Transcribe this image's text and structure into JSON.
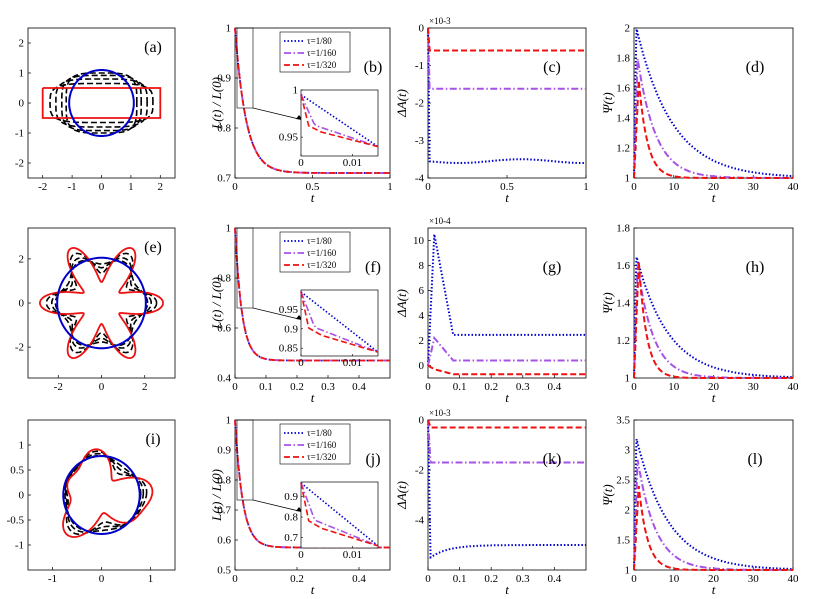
{
  "colors": {
    "blue": "#0000cc",
    "purple": "#a652e6",
    "red": "#ee1111",
    "black": "#000000"
  },
  "legend": [
    {
      "label": "τ=1/80",
      "color": "#0000cc",
      "dash": "1.5,2"
    },
    {
      "label": "τ=1/160",
      "color": "#a652e6",
      "dash": "7,2.5,1.5,2.5"
    },
    {
      "label": "τ=1/320",
      "color": "#ee1111",
      "dash": "6,3"
    }
  ],
  "chart_data": [
    {
      "panel": "(a)",
      "type": "line",
      "xlabel": "",
      "ylabel": "",
      "xlim": [
        -2.5,
        2.5
      ],
      "ylim": [
        -2.5,
        2.5
      ],
      "xticks": [
        -2,
        -1,
        0,
        1,
        2
      ],
      "yticks": [
        -2,
        -1,
        0,
        1,
        2
      ],
      "shape": "rectangle",
      "series": [
        {
          "name": "initial",
          "color": "#ee1111"
        },
        {
          "name": "intermediate",
          "color": "#000000"
        },
        {
          "name": "final circle",
          "color": "#0000cc"
        }
      ]
    },
    {
      "panel": "(b)",
      "type": "line",
      "xlabel": "t",
      "ylabel": "L(t) / L(0)",
      "xlim": [
        0,
        1
      ],
      "ylim": [
        0.7,
        1
      ],
      "xticks": [
        "0",
        "0.5",
        "1"
      ],
      "yticks": [
        "0.7",
        "0.8",
        "0.9",
        "1"
      ],
      "final": 0.71,
      "rate": 14,
      "inset": {
        "xlim": [
          0,
          0.015
        ],
        "ylim": [
          0.93,
          1
        ],
        "xticks": [
          "0",
          "0.01"
        ],
        "yticks": [
          "0.95",
          "1"
        ]
      }
    },
    {
      "panel": "(c)",
      "type": "line",
      "xlabel": "t",
      "ylabel": "ΔA(t)",
      "exponent": "×10-3",
      "xlim": [
        0,
        1
      ],
      "ylim": [
        -4,
        0
      ],
      "xticks": [
        "0",
        "0.5",
        "1"
      ],
      "yticks": [
        "-4",
        "-3",
        "-2",
        "-1",
        "0"
      ],
      "series": [
        {
          "name": "τ=1/80",
          "value": -3.55
        },
        {
          "name": "τ=1/160",
          "value": -1.62
        },
        {
          "name": "τ=1/320",
          "value": -0.6
        }
      ]
    },
    {
      "panel": "(d)",
      "type": "line",
      "xlabel": "t",
      "ylabel": "Ψ(t)",
      "xlim": [
        0,
        40
      ],
      "ylim": [
        1,
        2
      ],
      "xticks": [
        "0",
        "10",
        "20",
        "30",
        "40"
      ],
      "yticks": [
        "1",
        "1.2",
        "1.4",
        "1.6",
        "1.8",
        "2"
      ],
      "series": [
        {
          "name": "τ=1/80",
          "peak": 2.0,
          "decay": 9
        },
        {
          "name": "τ=1/160",
          "peak": 1.8,
          "decay": 4.5
        },
        {
          "name": "τ=1/320",
          "peak": 1.65,
          "decay": 2.2
        }
      ]
    },
    {
      "panel": "(e)",
      "type": "line",
      "xlabel": "",
      "ylabel": "",
      "xlim": [
        -3.4,
        3.4
      ],
      "ylim": [
        -3.4,
        3.4
      ],
      "xticks": [
        -2,
        0,
        2
      ],
      "yticks": [
        -2,
        0,
        2
      ],
      "shape": "star",
      "series": [
        {
          "name": "initial",
          "color": "#ee1111"
        },
        {
          "name": "intermediate",
          "color": "#000000"
        },
        {
          "name": "final circle",
          "color": "#0000cc"
        }
      ]
    },
    {
      "panel": "(f)",
      "type": "line",
      "xlabel": "t",
      "ylabel": "L(t) / L(0)",
      "xlim": [
        0,
        0.5
      ],
      "ylim": [
        0.4,
        1
      ],
      "xticks": [
        "0",
        "0.1",
        "0.2",
        "0.3",
        "0.4"
      ],
      "yticks": [
        "0.4",
        "0.6",
        "0.8",
        "1"
      ],
      "final": 0.47,
      "rate": 45,
      "inset": {
        "xlim": [
          0,
          0.015
        ],
        "ylim": [
          0.83,
          1
        ],
        "xticks": [
          "0",
          "0.01"
        ],
        "yticks": [
          "0.85",
          "0.9",
          "0.95"
        ]
      }
    },
    {
      "panel": "(g)",
      "type": "line",
      "xlabel": "t",
      "ylabel": "ΔA(t)",
      "exponent": "×10-4",
      "xlim": [
        0,
        0.5
      ],
      "ylim": [
        -1,
        11
      ],
      "xticks": [
        "0",
        "0.1",
        "0.2",
        "0.3",
        "0.4"
      ],
      "yticks": [
        "0",
        "2",
        "4",
        "6",
        "8",
        "10"
      ],
      "series": [
        {
          "name": "τ=1/80",
          "value": 2.4,
          "peak": 10.5
        },
        {
          "name": "τ=1/160",
          "value": 0.4,
          "peak": 2.2
        },
        {
          "name": "τ=1/320",
          "value": -0.7,
          "peak": 0
        }
      ]
    },
    {
      "panel": "(h)",
      "type": "line",
      "xlabel": "t",
      "ylabel": "Ψ(t)",
      "xlim": [
        0,
        40
      ],
      "ylim": [
        1,
        1.8
      ],
      "xticks": [
        "0",
        "10",
        "20",
        "30",
        "40"
      ],
      "yticks": [
        "1",
        "1.2",
        "1.4",
        "1.6",
        "1.8"
      ],
      "series": [
        {
          "name": "τ=1/80",
          "peak": 1.65,
          "decay": 8
        },
        {
          "name": "τ=1/160",
          "peak": 1.6,
          "decay": 4
        },
        {
          "name": "τ=1/320",
          "peak": 1.62,
          "decay": 2
        }
      ]
    },
    {
      "panel": "(i)",
      "type": "line",
      "xlabel": "",
      "ylabel": "",
      "xlim": [
        -1.5,
        1.5
      ],
      "ylim": [
        -1.5,
        1.5
      ],
      "xticks": [
        -1,
        0,
        1
      ],
      "yticks": [
        -1,
        -0.5,
        0,
        0.5,
        1
      ],
      "shape": "irregular",
      "series": [
        {
          "name": "initial",
          "color": "#ee1111"
        },
        {
          "name": "intermediate",
          "color": "#000000"
        },
        {
          "name": "final circle",
          "color": "#0000cc"
        }
      ]
    },
    {
      "panel": "(j)",
      "type": "line",
      "xlabel": "t",
      "ylabel": "L(t) / L(0)",
      "xlim": [
        0,
        0.5
      ],
      "ylim": [
        0.5,
        1
      ],
      "xticks": [
        "0",
        "0.2",
        "0.4"
      ],
      "yticks": [
        "0.5",
        "0.6",
        "0.7",
        "0.8",
        "0.9",
        "1"
      ],
      "final": 0.575,
      "rate": 40,
      "inset": {
        "xlim": [
          0,
          0.015
        ],
        "ylim": [
          0.65,
          0.97
        ],
        "xticks": [
          "0",
          "0.01"
        ],
        "yticks": [
          "0.7",
          "0.8",
          "0.9"
        ]
      }
    },
    {
      "panel": "(k)",
      "type": "line",
      "xlabel": "t",
      "ylabel": "ΔA(t)",
      "exponent": "×10-3",
      "xlim": [
        0,
        0.5
      ],
      "ylim": [
        -6,
        0
      ],
      "xticks": [
        "0",
        "0.1",
        "0.2",
        "0.3",
        "0.4"
      ],
      "yticks": [
        "-4",
        "-2",
        "0"
      ],
      "series": [
        {
          "name": "τ=1/80",
          "value": -5.0,
          "peak": -5.5
        },
        {
          "name": "τ=1/160",
          "value": -1.7,
          "peak": -1.7
        },
        {
          "name": "τ=1/320",
          "value": -0.3,
          "peak": -0.3
        }
      ]
    },
    {
      "panel": "(l)",
      "type": "line",
      "xlabel": "t",
      "ylabel": "Ψ(t)",
      "xlim": [
        0,
        40
      ],
      "ylim": [
        1,
        3.5
      ],
      "xticks": [
        "0",
        "10",
        "20",
        "30",
        "40"
      ],
      "yticks": [
        "1",
        "1.5",
        "2",
        "2.5",
        "3",
        "3.5"
      ],
      "series": [
        {
          "name": "τ=1/80",
          "peak": 3.2,
          "decay": 8
        },
        {
          "name": "τ=1/160",
          "peak": 2.85,
          "decay": 4.5
        },
        {
          "name": "τ=1/320",
          "peak": 2.4,
          "decay": 2.2
        }
      ]
    }
  ]
}
